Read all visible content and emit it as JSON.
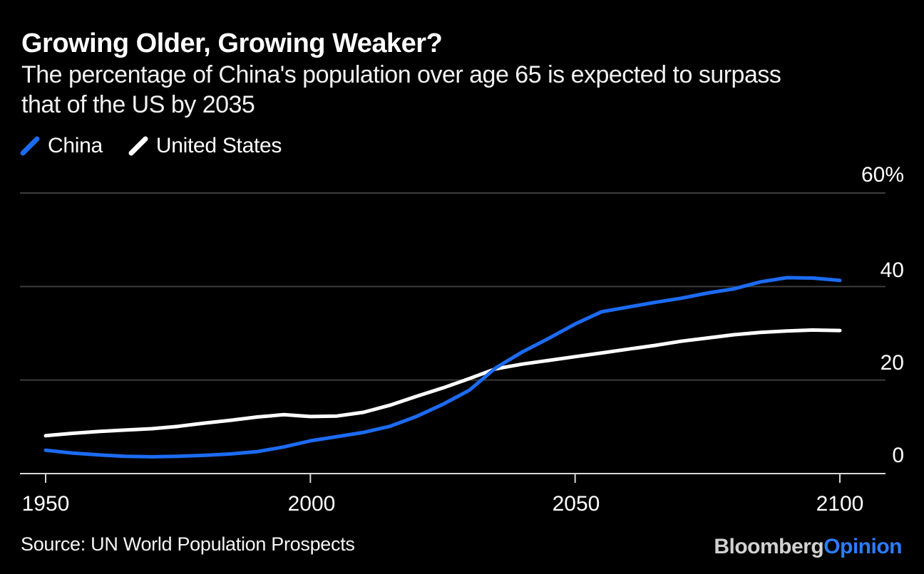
{
  "header": {
    "title": "Growing Older, Growing Weaker?",
    "subtitle_lines": [
      "The percentage of China's population over age 65 is expected to surpass",
      "that of the US by 2035"
    ]
  },
  "legend": {
    "items": [
      {
        "label": "China",
        "color": "#1c6bf2"
      },
      {
        "label": "United States",
        "color": "#ffffff"
      }
    ]
  },
  "chart_data": {
    "type": "line",
    "title": "Growing Older, Growing Weaker?",
    "subtitle": "The percentage of China's population over age 65 is expected to surpass that of the US by 2035",
    "x": [
      1950,
      1955,
      1960,
      1965,
      1970,
      1975,
      1980,
      1985,
      1990,
      1995,
      2000,
      2005,
      2010,
      2015,
      2020,
      2025,
      2030,
      2035,
      2040,
      2045,
      2050,
      2055,
      2060,
      2065,
      2070,
      2075,
      2080,
      2085,
      2090,
      2095,
      2100
    ],
    "series": [
      {
        "name": "China",
        "color": "#1c6bf2",
        "values": [
          5.0,
          4.4,
          4.0,
          3.7,
          3.6,
          3.7,
          3.9,
          4.2,
          4.7,
          5.7,
          7.0,
          7.9,
          8.8,
          10.1,
          12.2,
          14.8,
          17.8,
          22.6,
          26.0,
          28.9,
          32.0,
          34.6,
          35.6,
          36.6,
          37.5,
          38.6,
          39.5,
          41.0,
          41.9,
          41.8,
          41.3
        ]
      },
      {
        "name": "United States",
        "color": "#ffffff",
        "values": [
          8.1,
          8.6,
          9.0,
          9.3,
          9.6,
          10.1,
          10.8,
          11.4,
          12.1,
          12.6,
          12.2,
          12.3,
          13.1,
          14.6,
          16.5,
          18.3,
          20.3,
          22.4,
          23.4,
          24.2,
          25.0,
          25.8,
          26.6,
          27.4,
          28.3,
          29.0,
          29.7,
          30.2,
          30.5,
          30.7,
          30.6
        ]
      }
    ],
    "xlabel": "",
    "ylabel": "",
    "xlim": [
      1950,
      2100
    ],
    "ylim": [
      0,
      60
    ],
    "x_ticks": [
      1950,
      2000,
      2050,
      2100
    ],
    "y_ticks": [
      0,
      20,
      40,
      60
    ],
    "y_tick_labels": [
      "0",
      "20",
      "40",
      "60%"
    ],
    "grid": true,
    "legend_position": "top-left"
  },
  "footer": {
    "source": "Source: UN World Population Prospects",
    "logo": {
      "brand": "Bloomberg",
      "suffix": "Opinion"
    }
  },
  "colors": {
    "background": "#000000",
    "gridline": "#3c3c3c",
    "axis": "#d8d8d8",
    "text": "#ffffff",
    "logo_brand": "#d1d1d1",
    "logo_suffix": "#2d7cfe"
  }
}
